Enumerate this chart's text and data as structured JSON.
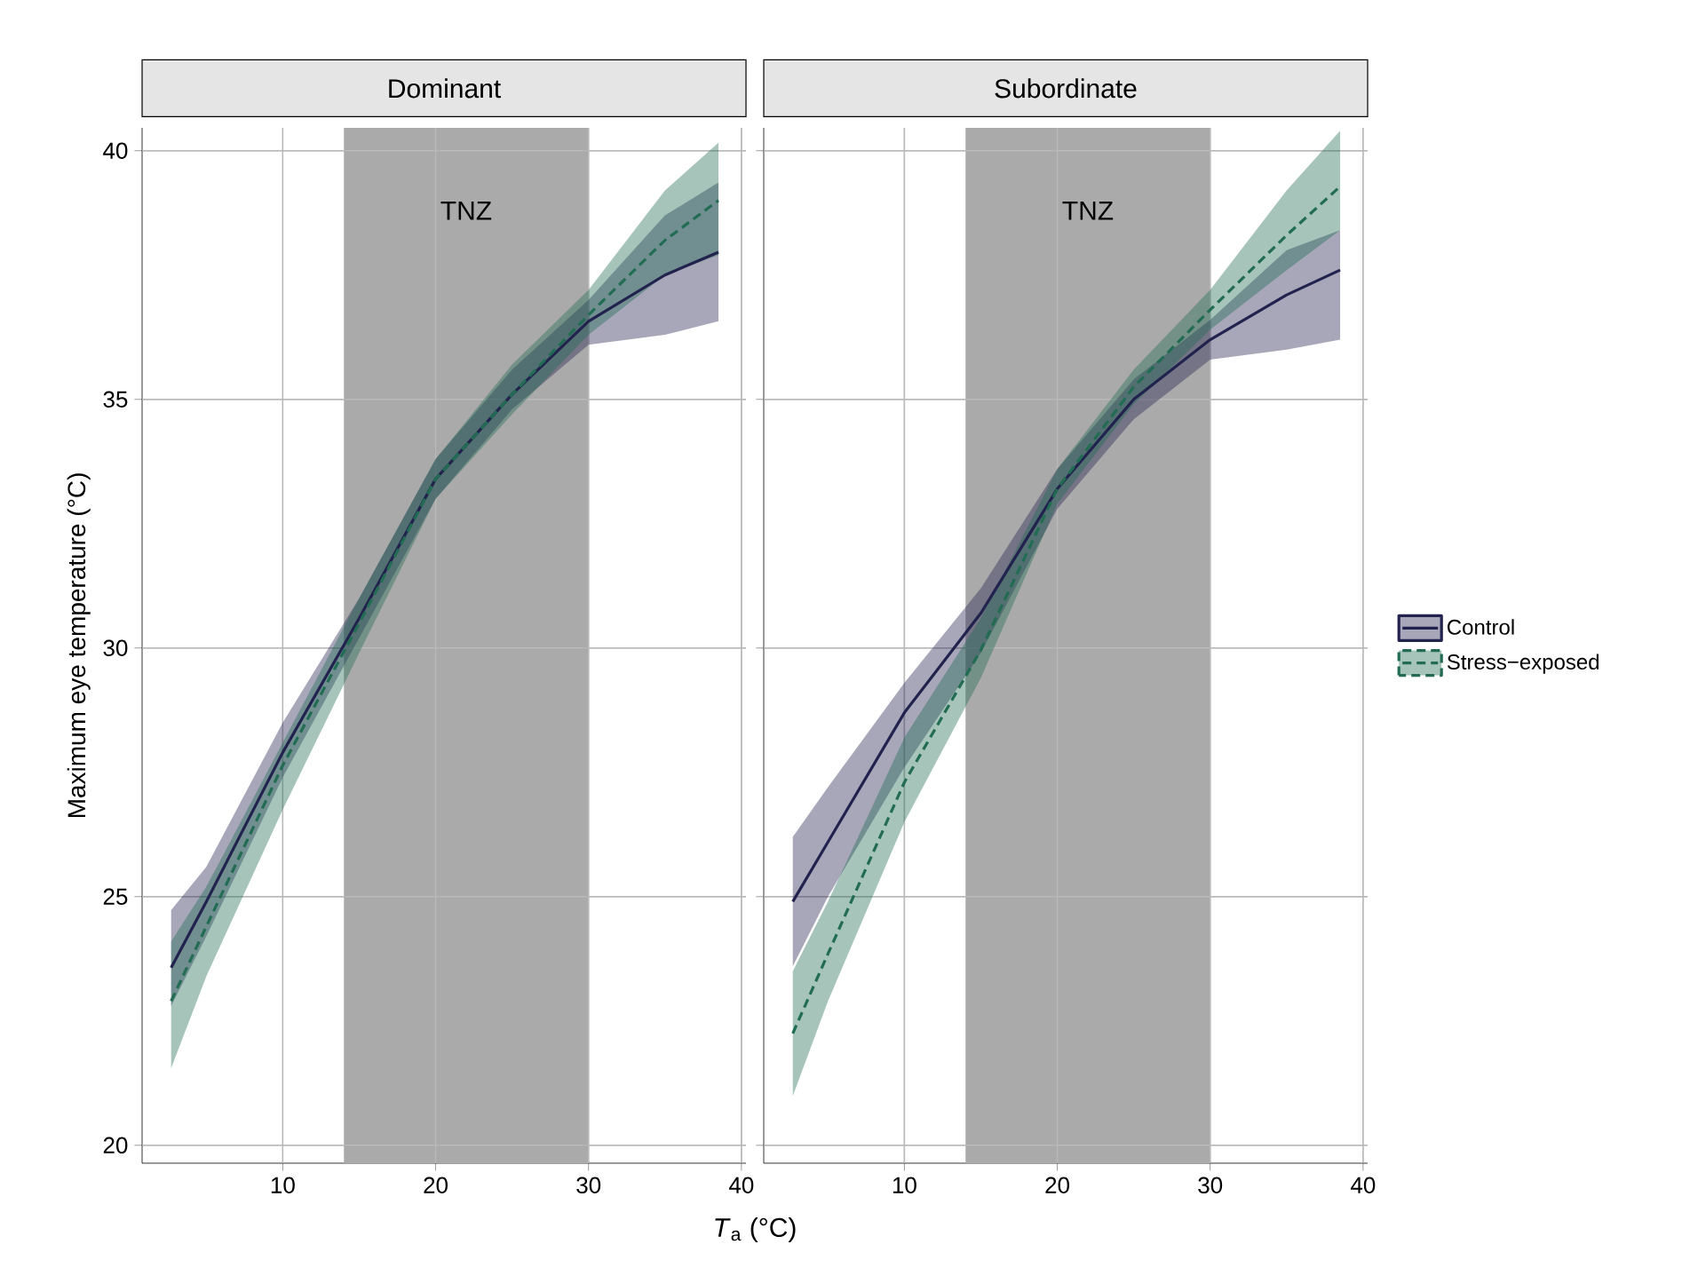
{
  "chart_data": [
    {
      "type": "line",
      "title": "Dominant",
      "ylabel": "Maximum eye temperature (°C)",
      "xlabel": "*T*$_{a}$ (°C)",
      "x": [
        2.7,
        5,
        10,
        15,
        20,
        25,
        30,
        35,
        38.5
      ],
      "xlim": [
        0.8,
        40.3
      ],
      "xticks": [
        10,
        20,
        30,
        40
      ],
      "ylim": [
        19.64,
        40.46
      ],
      "yticks": [
        20,
        25,
        30,
        35,
        40
      ],
      "grid": true,
      "legend": false,
      "bands": [
        {
          "axis": "x",
          "from": 14,
          "to": 30,
          "label": "TNZ",
          "color": "#aaaaaa"
        }
      ],
      "series": [
        {
          "color": "#22224f",
          "line_style": "solid",
          "values": [
            23.57,
            24.9,
            27.9,
            30.6,
            33.4,
            35.1,
            36.57,
            37.5,
            37.96
          ],
          "lower": [
            22.8,
            24.2,
            27.4,
            30.2,
            33.0,
            34.8,
            36.1,
            36.3,
            36.57
          ],
          "upper": [
            24.73,
            25.6,
            28.5,
            31.0,
            33.8,
            35.6,
            37.0,
            38.7,
            39.36
          ]
        },
        {
          "color": "#216c52",
          "line_style": "dashed",
          "values": [
            22.9,
            24.4,
            27.64,
            30.5,
            33.4,
            35.1,
            36.7,
            38.2,
            39.0
          ],
          "lower": [
            21.55,
            23.4,
            26.75,
            29.9,
            33.0,
            34.7,
            36.3,
            37.5,
            37.9
          ],
          "upper": [
            24.1,
            25.2,
            28.1,
            31.0,
            33.8,
            35.7,
            37.2,
            39.2,
            40.16
          ]
        }
      ]
    },
    {
      "type": "line",
      "title": "Subordinate",
      "tick_labels": "x",
      "x": [
        2.7,
        5,
        10,
        15,
        20,
        25,
        30,
        35,
        38.5
      ],
      "xlim": [
        0.8,
        40.3
      ],
      "xticks": [
        10,
        20,
        30,
        40
      ],
      "ylim": [
        19.64,
        40.46
      ],
      "yticks": [
        20,
        25,
        30,
        35,
        40
      ],
      "grid": true,
      "legend": "right",
      "bands": [
        {
          "axis": "x",
          "from": 14,
          "to": 30,
          "label": "TNZ",
          "color": "#aaaaaa"
        }
      ],
      "series": [
        {
          "name": "Control",
          "color": "#22224f",
          "line_style": "solid",
          "values": [
            24.9,
            26.1,
            28.7,
            30.7,
            33.2,
            35.0,
            36.2,
            37.1,
            37.6
          ],
          "lower": [
            23.6,
            25.0,
            27.6,
            29.9,
            32.8,
            34.6,
            35.8,
            36.0,
            36.2
          ],
          "upper": [
            26.2,
            27.2,
            29.3,
            31.2,
            33.6,
            35.4,
            36.6,
            38.0,
            38.4
          ]
        },
        {
          "name": "Stress−exposed",
          "color": "#216c52",
          "line_style": "dashed",
          "values": [
            22.25,
            23.85,
            27.3,
            29.96,
            33.2,
            35.25,
            36.8,
            38.3,
            39.28
          ],
          "lower": [
            20.99,
            22.9,
            26.5,
            29.4,
            32.9,
            34.9,
            36.4,
            37.6,
            38.4
          ],
          "upper": [
            23.5,
            24.9,
            28.2,
            30.6,
            33.6,
            35.6,
            37.2,
            39.2,
            40.4
          ]
        }
      ]
    }
  ]
}
